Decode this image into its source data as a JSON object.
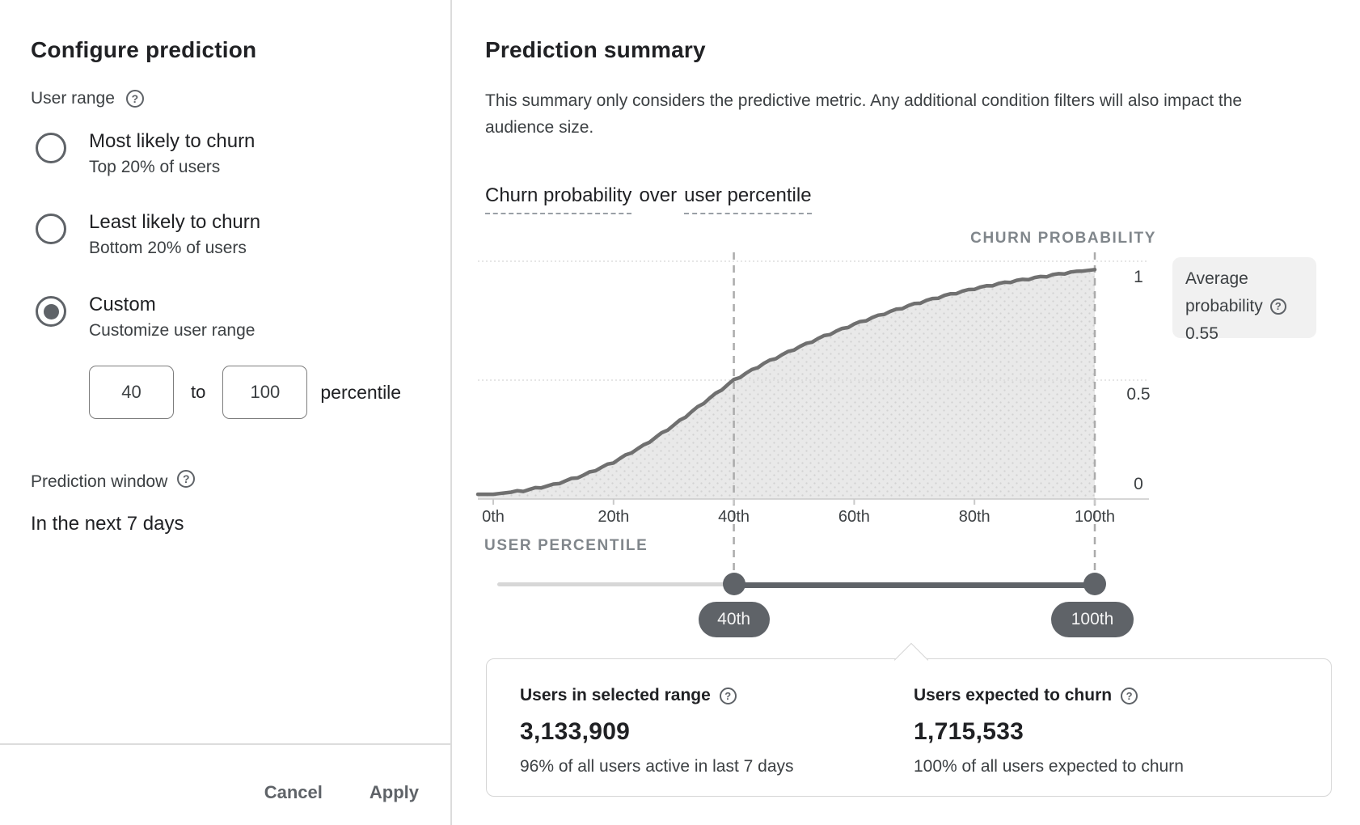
{
  "left_panel": {
    "title": "Configure prediction",
    "user_range_label": "User range",
    "options": [
      {
        "label": "Most likely to churn",
        "sublabel": "Top 20% of users",
        "selected": false
      },
      {
        "label": "Least likely to churn",
        "sublabel": "Bottom 20% of users",
        "selected": false
      },
      {
        "label": "Custom",
        "sublabel": "Customize user range",
        "selected": true
      }
    ],
    "range_from": "40",
    "range_to": "100",
    "to_label": "to",
    "percentile_label": "percentile",
    "prediction_window_label": "Prediction window",
    "prediction_window_value": "In the next 7 days",
    "cancel_label": "Cancel",
    "apply_label": "Apply"
  },
  "summary": {
    "title": "Prediction summary",
    "description": "This summary only considers the predictive metric. Any additional condition filters will also impact the audience size.",
    "heading_term1": "Churn probability",
    "heading_mid": "over",
    "heading_term2": "user percentile",
    "avg_box": {
      "line1": "Average",
      "line2": "probability",
      "value": "0.55"
    },
    "stats": [
      {
        "label": "Users in selected range",
        "value": "3,133,909",
        "caption": "96% of all users active in last 7 days"
      },
      {
        "label": "Users expected to churn",
        "value": "1,715,533",
        "caption": "100% of all users expected to churn"
      }
    ]
  },
  "chart_data": {
    "type": "area",
    "title": "Churn probability over user percentile",
    "xlabel": "USER PERCENTILE",
    "ylabel": "CHURN PROBABILITY",
    "x_ticks": [
      "0th",
      "20th",
      "40th",
      "60th",
      "80th",
      "100th"
    ],
    "y_ticks": [
      "1",
      "0.5",
      "0"
    ],
    "xlim": [
      0,
      100
    ],
    "ylim": [
      0,
      1
    ],
    "grid": true,
    "x": [
      0,
      5,
      10,
      15,
      20,
      25,
      30,
      35,
      40,
      45,
      50,
      55,
      60,
      65,
      70,
      75,
      80,
      85,
      90,
      95,
      100
    ],
    "y": [
      0.02,
      0.035,
      0.06,
      0.1,
      0.155,
      0.225,
      0.31,
      0.405,
      0.5,
      0.57,
      0.63,
      0.685,
      0.735,
      0.78,
      0.82,
      0.855,
      0.885,
      0.91,
      0.93,
      0.95,
      0.965
    ],
    "selected_range": {
      "from": 40,
      "to": 100,
      "from_label": "40th",
      "to_label": "100th"
    },
    "average_probability": 0.55,
    "colors": {
      "curve": "#707070",
      "area": "#e9e9e9",
      "area_dots": "#d2d2d2",
      "grid": "#d8d8d8",
      "axis": "#c9c9c9",
      "selection_dash": "#ababab",
      "slider": "#5f6368",
      "track_light": "#d7d7d7"
    }
  }
}
